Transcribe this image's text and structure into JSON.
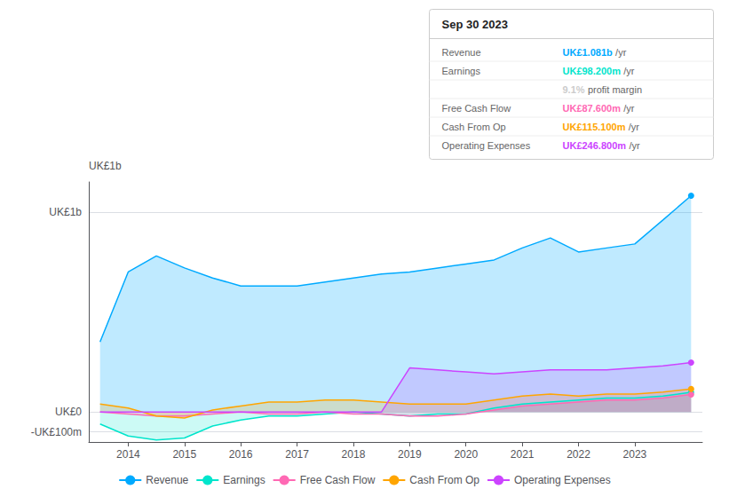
{
  "chart_data": {
    "type": "area",
    "x": [
      2013.5,
      2014.0,
      2014.5,
      2015.0,
      2015.5,
      2016.0,
      2016.5,
      2017.0,
      2017.5,
      2018.0,
      2018.5,
      2019.0,
      2019.5,
      2020.0,
      2020.5,
      2021.0,
      2021.5,
      2022.0,
      2022.5,
      2023.0,
      2023.5,
      2024.0
    ],
    "series": [
      {
        "name": "Revenue",
        "color": "#00aaff",
        "values": [
          0.35,
          0.7,
          0.78,
          0.72,
          0.67,
          0.63,
          0.63,
          0.63,
          0.65,
          0.67,
          0.69,
          0.7,
          0.72,
          0.74,
          0.76,
          0.82,
          0.87,
          0.8,
          0.82,
          0.84,
          0.96,
          1.081
        ]
      },
      {
        "name": "Earnings",
        "color": "#00e5cc",
        "values": [
          -0.06,
          -0.12,
          -0.14,
          -0.13,
          -0.07,
          -0.04,
          -0.02,
          -0.02,
          -0.01,
          0.0,
          -0.01,
          -0.02,
          -0.01,
          -0.01,
          0.02,
          0.04,
          0.05,
          0.06,
          0.07,
          0.07,
          0.08,
          0.098
        ]
      },
      {
        "name": "Free Cash Flow",
        "color": "#ff69b4",
        "values": [
          0.0,
          -0.01,
          -0.02,
          -0.02,
          -0.01,
          0.0,
          -0.01,
          -0.01,
          0.0,
          -0.01,
          -0.01,
          -0.02,
          -0.02,
          -0.01,
          0.01,
          0.03,
          0.04,
          0.05,
          0.06,
          0.06,
          0.07,
          0.0876
        ]
      },
      {
        "name": "Cash From Op",
        "color": "#ffa500",
        "values": [
          0.04,
          0.02,
          -0.02,
          -0.03,
          0.01,
          0.03,
          0.05,
          0.05,
          0.06,
          0.06,
          0.05,
          0.04,
          0.04,
          0.04,
          0.06,
          0.08,
          0.09,
          0.08,
          0.09,
          0.09,
          0.1,
          0.115
        ]
      },
      {
        "name": "Operating Expenses",
        "color": "#cc44ff",
        "values": [
          0.0,
          0.0,
          0.0,
          0.0,
          0.0,
          0.0,
          0.0,
          0.0,
          0.0,
          0.0,
          0.0,
          0.22,
          0.21,
          0.2,
          0.19,
          0.2,
          0.21,
          0.21,
          0.21,
          0.22,
          0.23,
          0.2468
        ]
      }
    ],
    "xlim": [
      2013.3,
      2024.2
    ],
    "xticks": [
      2014,
      2015,
      2016,
      2017,
      2018,
      2019,
      2020,
      2021,
      2022,
      2023
    ],
    "ylim": [
      -0.15,
      1.15
    ],
    "yticks": [
      {
        "value": -0.1,
        "label": "-UK£100m"
      },
      {
        "value": 0.0,
        "label": "UK£0"
      },
      {
        "value": 1.0,
        "label": "UK£1b"
      }
    ],
    "grid": true,
    "legend": "bottom",
    "annotations": [
      {
        "text": "UK£1b"
      }
    ],
    "info_box": {
      "title": "Sep 30 2023",
      "rows": [
        {
          "label": "Revenue",
          "value": "UK£1.081b",
          "unit": "/yr",
          "color": "#00aaff"
        },
        {
          "label": "Earnings",
          "value": "UK£98.200m",
          "unit": "/yr",
          "color": "#00e5cc"
        },
        {
          "value": "9.1%",
          "unit": "profit margin",
          "color": "#cccccc"
        },
        {
          "label": "Free Cash Flow",
          "value": "UK£87.600m",
          "unit": "/yr",
          "color": "#ff69b4"
        },
        {
          "label": "Cash From Op",
          "value": "UK£115.100m",
          "unit": "/yr",
          "color": "#ffa500"
        },
        {
          "label": "Operating Expenses",
          "value": "UK£246.800m",
          "unit": "/yr",
          "color": "#cc44ff"
        }
      ]
    }
  }
}
